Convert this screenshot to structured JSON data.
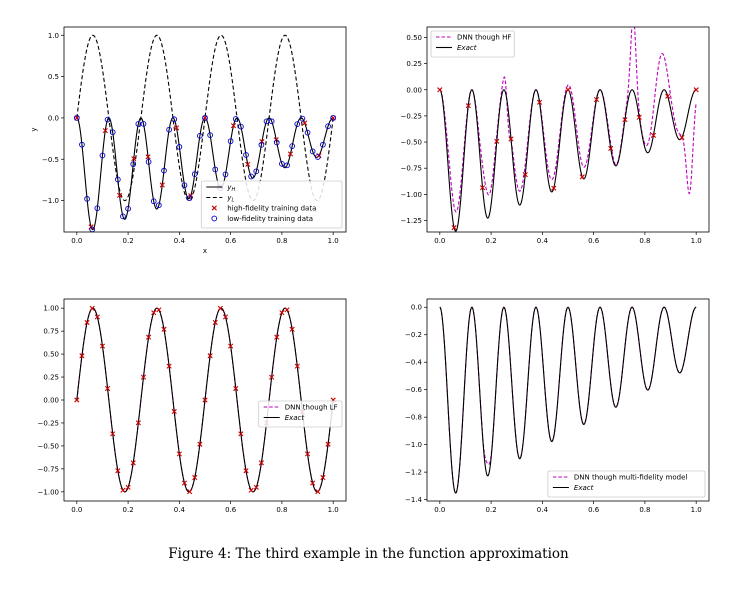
{
  "caption": "Figure 4: The third example in the function approximation",
  "chart_data": [
    {
      "type": "line",
      "panel": "top-left",
      "xlabel": "x",
      "ylabel": "y",
      "xlim": [
        -0.05,
        1.05
      ],
      "ylim": [
        -1.38,
        1.1
      ],
      "xticks": [
        0.0,
        0.2,
        0.4,
        0.6,
        0.8,
        1.0
      ],
      "yticks": [
        -1.0,
        -0.5,
        0.0,
        0.5,
        1.0
      ],
      "xtick_labels": [
        "0.0",
        "0.2",
        "0.4",
        "0.6",
        "0.8",
        "1.0"
      ],
      "ytick_labels": [
        "−1.0",
        "−0.5",
        "0.0",
        "0.5",
        "1.0"
      ],
      "legend_position": "bottom-right",
      "series": [
        {
          "name": "y_H",
          "legend": "yH",
          "style": "solid-black",
          "fn": "high"
        },
        {
          "name": "y_L",
          "legend": "yL",
          "style": "dashed-black",
          "fn": "low"
        },
        {
          "name": "high-fidelity training data",
          "legend": "high-fidelity training data",
          "style": "x-red",
          "x": [
            0.0,
            0.0556,
            0.1111,
            0.1667,
            0.2222,
            0.2778,
            0.3333,
            0.3889,
            0.4444,
            0.5,
            0.5556,
            0.6111,
            0.6667,
            0.7222,
            0.7778,
            0.8333,
            0.8889,
            0.9444,
            1.0
          ]
        },
        {
          "name": "low-fidelity training data",
          "legend": "low-fidelity training data",
          "style": "o-blue",
          "x": [
            0.0,
            0.02,
            0.04,
            0.06,
            0.08,
            0.1,
            0.12,
            0.14,
            0.16,
            0.18,
            0.2,
            0.22,
            0.24,
            0.26,
            0.28,
            0.3,
            0.32,
            0.34,
            0.36,
            0.38,
            0.4,
            0.42,
            0.44,
            0.46,
            0.48,
            0.5,
            0.52,
            0.54,
            0.56,
            0.58,
            0.6,
            0.62,
            0.64,
            0.66,
            0.68,
            0.7,
            0.72,
            0.74,
            0.76,
            0.78,
            0.8,
            0.82,
            0.84,
            0.86,
            0.88,
            0.9,
            0.92,
            0.94,
            0.96,
            0.98,
            1.0
          ]
        }
      ]
    },
    {
      "type": "line",
      "panel": "top-right",
      "xlim": [
        -0.05,
        1.05
      ],
      "ylim": [
        -1.36,
        0.6
      ],
      "xticks": [
        0.0,
        0.2,
        0.4,
        0.6,
        0.8,
        1.0
      ],
      "yticks": [
        -1.25,
        -1.0,
        -0.75,
        -0.5,
        -0.25,
        0.0,
        0.25,
        0.5
      ],
      "xtick_labels": [
        "0.0",
        "0.2",
        "0.4",
        "0.6",
        "0.8",
        "1.0"
      ],
      "ytick_labels": [
        "−1.25",
        "−1.00",
        "−0.75",
        "−0.50",
        "−0.25",
        "0.00",
        "0.25",
        "0.50"
      ],
      "legend_position": "top-left",
      "series": [
        {
          "name": "DNN though HF",
          "legend": "DNN though HF",
          "style": "dashed-magenta",
          "fn": "dnnhf"
        },
        {
          "name": "Exact",
          "legend": "Exact",
          "style": "solid-black",
          "fn": "high"
        },
        {
          "name": "high-fidelity training data",
          "style": "x-red",
          "x": [
            0.0,
            0.0556,
            0.1111,
            0.1667,
            0.2222,
            0.2778,
            0.3333,
            0.3889,
            0.4444,
            0.5,
            0.5556,
            0.6111,
            0.6667,
            0.7222,
            0.7778,
            0.8333,
            0.8889,
            0.9444,
            1.0
          ]
        }
      ]
    },
    {
      "type": "line",
      "panel": "bottom-left",
      "xlim": [
        -0.05,
        1.05
      ],
      "ylim": [
        -1.1,
        1.1
      ],
      "xticks": [
        0.0,
        0.2,
        0.4,
        0.6,
        0.8,
        1.0
      ],
      "yticks": [
        -1.0,
        -0.75,
        -0.5,
        -0.25,
        0.0,
        0.25,
        0.5,
        0.75,
        1.0
      ],
      "xtick_labels": [
        "0.0",
        "0.2",
        "0.4",
        "0.6",
        "0.8",
        "1.0"
      ],
      "ytick_labels": [
        "−1.00",
        "−0.75",
        "−0.50",
        "−0.25",
        "0.00",
        "0.25",
        "0.50",
        "0.75",
        "1.00"
      ],
      "legend_position": "center-right",
      "series": [
        {
          "name": "DNN though LF",
          "legend": "DNN though LF",
          "style": "dashed-magenta",
          "fn": "low"
        },
        {
          "name": "Exact",
          "legend": "Exact",
          "style": "solid-black",
          "fn": "low"
        },
        {
          "name": "low-fidelity training data",
          "style": "x-red",
          "x": [
            0.0,
            0.02,
            0.04,
            0.06,
            0.08,
            0.1,
            0.12,
            0.14,
            0.16,
            0.18,
            0.2,
            0.22,
            0.24,
            0.26,
            0.28,
            0.3,
            0.32,
            0.34,
            0.36,
            0.38,
            0.4,
            0.42,
            0.44,
            0.46,
            0.48,
            0.5,
            0.52,
            0.54,
            0.56,
            0.58,
            0.6,
            0.62,
            0.64,
            0.66,
            0.68,
            0.7,
            0.72,
            0.74,
            0.76,
            0.78,
            0.8,
            0.82,
            0.84,
            0.86,
            0.88,
            0.9,
            0.92,
            0.94,
            0.96,
            0.98,
            1.0
          ]
        }
      ]
    },
    {
      "type": "line",
      "panel": "bottom-right",
      "xlim": [
        -0.05,
        1.05
      ],
      "ylim": [
        -1.41,
        0.06
      ],
      "xticks": [
        0.0,
        0.2,
        0.4,
        0.6,
        0.8,
        1.0
      ],
      "yticks": [
        -1.4,
        -1.2,
        -1.0,
        -0.8,
        -0.6,
        -0.4,
        -0.2,
        0.0
      ],
      "xtick_labels": [
        "0.0",
        "0.2",
        "0.4",
        "0.6",
        "0.8",
        "1.0"
      ],
      "ytick_labels": [
        "−1.4",
        "−1.2",
        "−1.0",
        "−0.8",
        "−0.6",
        "−0.4",
        "−0.2",
        "0.0"
      ],
      "legend_position": "bottom-right",
      "series": [
        {
          "name": "DNN though multi-fidelity model",
          "legend": "DNN though multi-fidelity model",
          "style": "dashed-magenta",
          "fn": "dnnmf"
        },
        {
          "name": "Exact",
          "legend": "Exact",
          "style": "solid-black",
          "fn": "high"
        }
      ]
    }
  ],
  "colors": {
    "black": "#000000",
    "red": "#cc0000",
    "blue": "#0000cc",
    "magenta": "#bf00bf"
  }
}
